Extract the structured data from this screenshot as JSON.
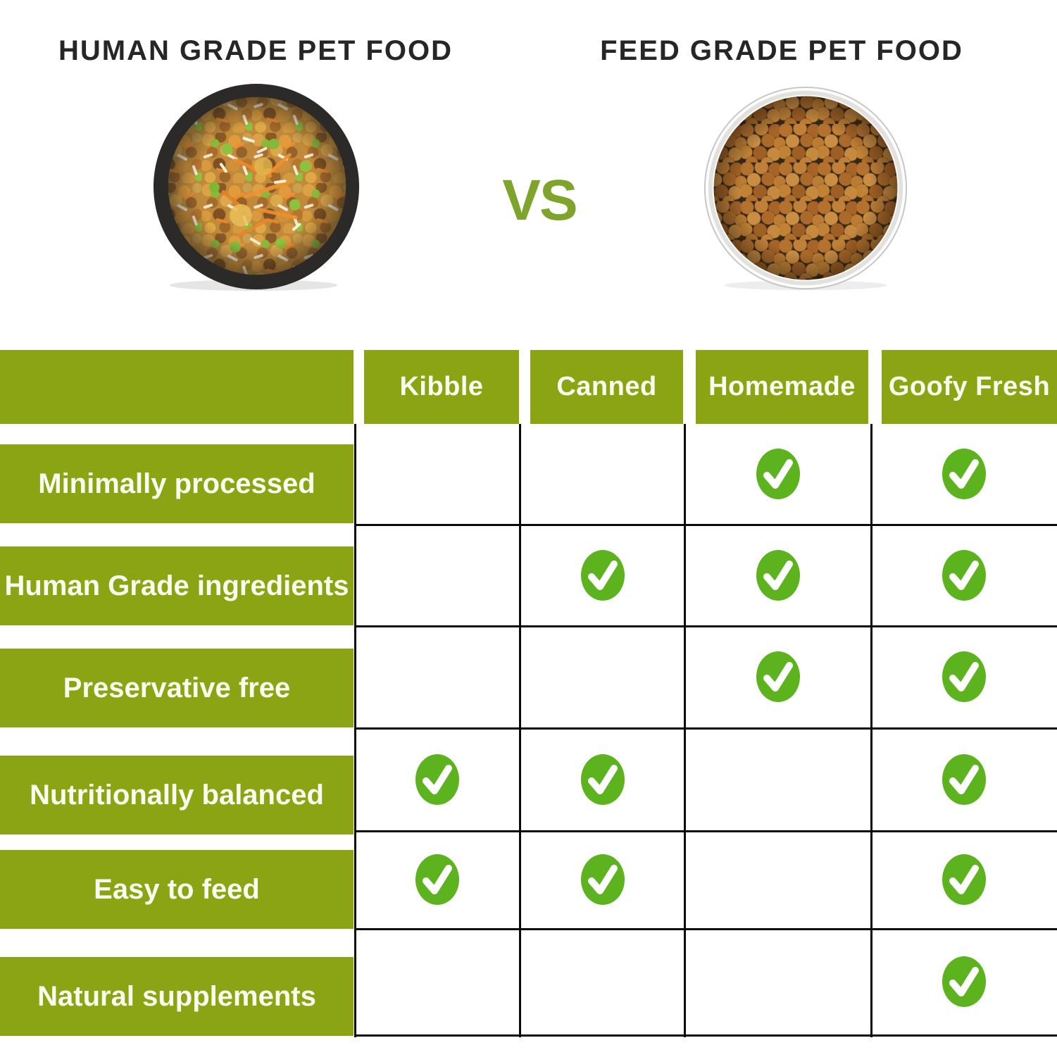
{
  "colors": {
    "olive": "#8BA414",
    "check_green": "#5CB31E",
    "title_text": "#262626",
    "vs_text": "#7FA42B",
    "grid_line": "#0a0a0a",
    "bar_text": "#fbfcf0"
  },
  "header": {
    "left_title": "HUMAN GRADE PET FOOD",
    "right_title": "FEED GRADE PET FOOD",
    "vs_label": "VS"
  },
  "table": {
    "columns": [
      {
        "label": "Kibble"
      },
      {
        "label": "Canned"
      },
      {
        "label": "Homemade"
      },
      {
        "label": "Goofy Fresh"
      }
    ],
    "rows": [
      {
        "label": "Minimally processed",
        "checks": [
          false,
          false,
          true,
          true
        ]
      },
      {
        "label": "Human Grade ingredients",
        "checks": [
          false,
          true,
          true,
          true
        ]
      },
      {
        "label": "Preservative free",
        "checks": [
          false,
          false,
          true,
          true
        ]
      },
      {
        "label": "Nutritionally balanced",
        "checks": [
          true,
          true,
          false,
          true
        ]
      },
      {
        "label": "Easy to feed",
        "checks": [
          true,
          true,
          false,
          true
        ]
      },
      {
        "label": "Natural supplements",
        "checks": [
          false,
          false,
          false,
          true
        ]
      }
    ]
  },
  "chart_data": {
    "type": "table",
    "title": "HUMAN GRADE PET FOOD vs FEED GRADE PET FOOD",
    "columns": [
      "Kibble",
      "Canned",
      "Homemade",
      "Goofy Fresh"
    ],
    "rows": [
      "Minimally processed",
      "Human Grade ingredients",
      "Preservative free",
      "Nutritionally balanced",
      "Easy to feed",
      "Natural supplements"
    ],
    "checks": [
      [
        false,
        false,
        true,
        true
      ],
      [
        false,
        true,
        true,
        true
      ],
      [
        false,
        false,
        true,
        true
      ],
      [
        true,
        true,
        false,
        true
      ],
      [
        true,
        true,
        false,
        true
      ],
      [
        false,
        false,
        false,
        true
      ]
    ],
    "legend_position": "none",
    "grid": true
  }
}
